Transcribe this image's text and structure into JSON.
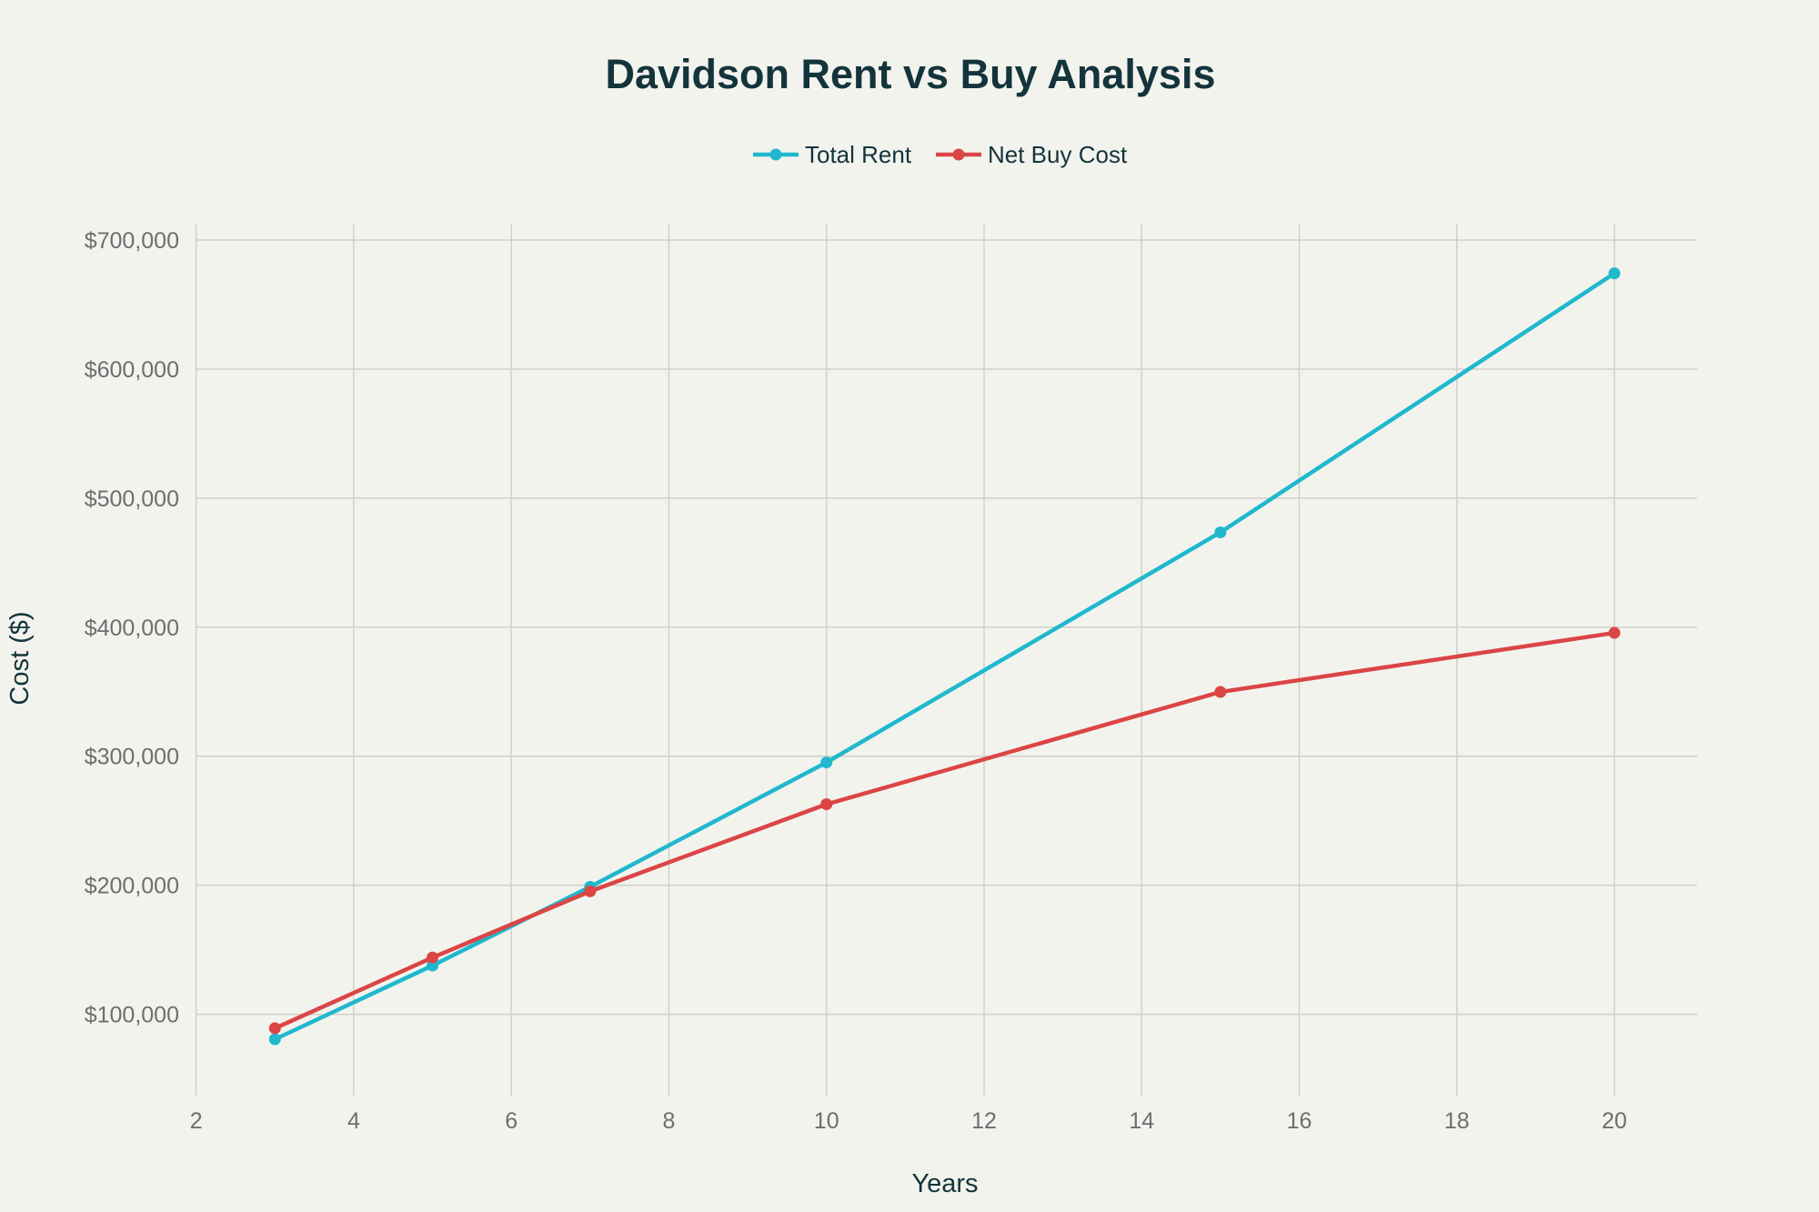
{
  "chart_data": {
    "type": "line",
    "title": "Davidson Rent vs Buy Analysis",
    "xlabel": "Years",
    "ylabel": "Cost ($)",
    "xlim": [
      1.3,
      21.05
    ],
    "ylim": [
      37000,
      712000
    ],
    "xticks": [
      2,
      4,
      6,
      8,
      10,
      12,
      14,
      16,
      18,
      20
    ],
    "yticks": [
      100000,
      200000,
      300000,
      400000,
      500000,
      600000,
      700000
    ],
    "ytick_labels": [
      "$100,000",
      "$200,000",
      "$300,000",
      "$400,000",
      "$500,000",
      "$600,000",
      "$700,000"
    ],
    "grid": true,
    "legend_placement": "top-center",
    "x": [
      3,
      5,
      7,
      10,
      15,
      20
    ],
    "series": [
      {
        "name": "Total Rent",
        "color": "#1fb8cd",
        "values": [
          80700,
          137800,
          198800,
          295200,
          473500,
          674200
        ]
      },
      {
        "name": "Net Buy Cost",
        "color": "#db4545",
        "values": [
          89200,
          144000,
          195300,
          262800,
          349800,
          395600
        ]
      }
    ]
  }
}
